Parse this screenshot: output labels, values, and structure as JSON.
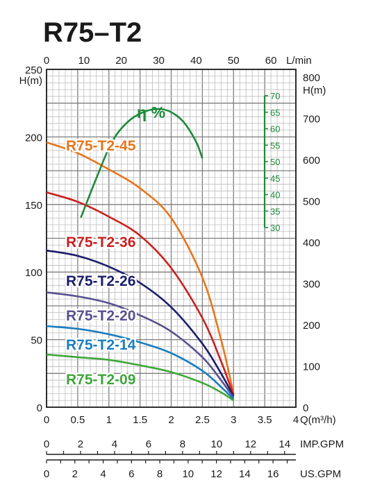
{
  "chart_data": {
    "type": "line",
    "title": "R75–T2",
    "x_primary": {
      "unit": "Q(m³/h)",
      "range": [
        0,
        4
      ],
      "ticks": [
        "0",
        "0.5",
        "1",
        "1.5",
        "2",
        "2.5",
        "3",
        "3.5",
        "4"
      ]
    },
    "x_top": {
      "unit": "L/min",
      "ticks": [
        "0",
        "10",
        "20",
        "30",
        "40",
        "50",
        "60"
      ]
    },
    "x_imp": {
      "unit": "IMP.GPM",
      "ticks": [
        "0",
        "2",
        "4",
        "6",
        "8",
        "10",
        "12",
        "14"
      ]
    },
    "x_us": {
      "unit": "US.GPM",
      "ticks": [
        "0",
        "2",
        "4",
        "6",
        "8",
        "10",
        "12",
        "14",
        "16"
      ]
    },
    "y_left": {
      "unit": "H(m)",
      "range": [
        0,
        250
      ],
      "ticks": [
        "0",
        "50",
        "100",
        "150",
        "200",
        "250"
      ]
    },
    "y_right": {
      "unit": "H(m)",
      "ticks": [
        "0",
        "100",
        "200",
        "300",
        "400",
        "500",
        "600",
        "700",
        "800"
      ]
    },
    "y_eff": {
      "unit": "η %",
      "ticks": [
        "30",
        "35",
        "40",
        "45",
        "50",
        "55",
        "60",
        "65",
        "70"
      ]
    },
    "grid": true,
    "series": [
      {
        "name": "R75-T2-45",
        "color": "#e8751a",
        "x": [
          0,
          0.5,
          1.0,
          1.5,
          2.0,
          2.5,
          2.8,
          3.0
        ],
        "y": [
          196,
          188,
          176,
          162,
          140,
          96,
          50,
          10
        ]
      },
      {
        "name": "R75-T2-36",
        "color": "#cc1f1f",
        "x": [
          0,
          0.5,
          1.0,
          1.5,
          2.0,
          2.5,
          2.8,
          3.0
        ],
        "y": [
          159,
          152,
          141,
          127,
          103,
          66,
          34,
          9
        ]
      },
      {
        "name": "R75-T2-26",
        "color": "#1b1d6b",
        "x": [
          0,
          0.5,
          1.0,
          1.5,
          2.0,
          2.5,
          2.8,
          3.0
        ],
        "y": [
          116,
          112,
          104,
          92,
          74,
          47,
          25,
          8
        ]
      },
      {
        "name": "R75-T2-20",
        "color": "#57518f",
        "x": [
          0,
          0.5,
          1.0,
          1.5,
          2.0,
          2.5,
          2.8,
          3.0
        ],
        "y": [
          85,
          82,
          77,
          68,
          56,
          37,
          20,
          7
        ]
      },
      {
        "name": "R75-T2-14",
        "color": "#1a7dc0",
        "x": [
          0,
          0.5,
          1.0,
          1.5,
          2.0,
          2.5,
          2.8,
          3.0
        ],
        "y": [
          60,
          58,
          54,
          48,
          40,
          27,
          15,
          6
        ]
      },
      {
        "name": "R75-T2-09",
        "color": "#3fa63a",
        "x": [
          0,
          0.5,
          1.0,
          1.5,
          2.0,
          2.5,
          2.8,
          3.0
        ],
        "y": [
          39,
          37,
          35,
          31,
          26,
          18,
          11,
          5
        ]
      }
    ],
    "efficiency": {
      "label": "η %",
      "color": "#1e8a3c",
      "x": [
        0.55,
        0.8,
        1.05,
        1.3,
        1.55,
        1.8,
        2.0,
        2.2,
        2.4,
        2.5
      ],
      "y": [
        33,
        45,
        56,
        62,
        65,
        66,
        65,
        62,
        56,
        51
      ]
    }
  }
}
